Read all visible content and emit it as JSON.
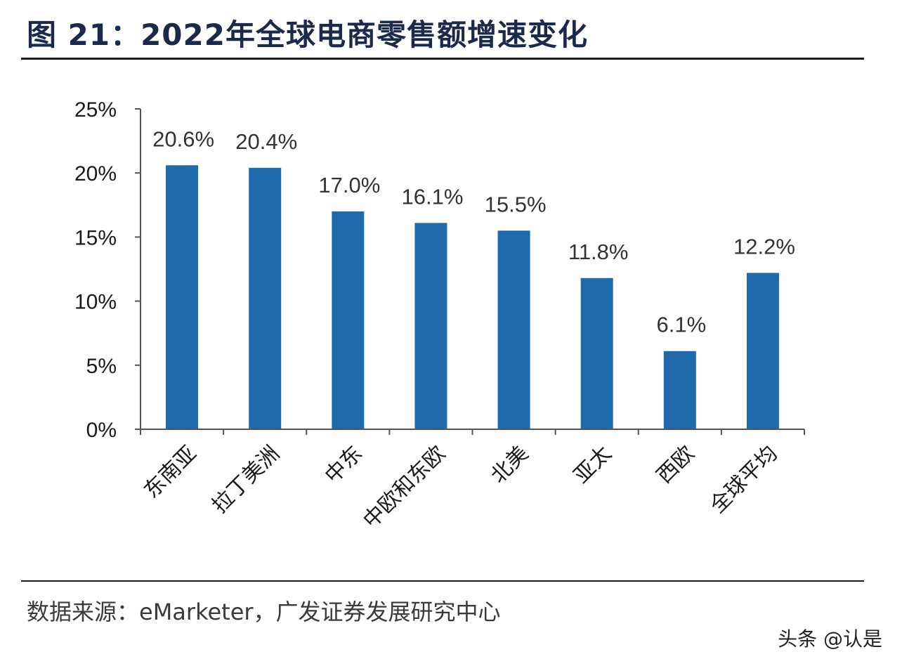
{
  "header": {
    "title": "图 21：2022年全球电商零售额增速变化"
  },
  "chart_data": {
    "type": "bar",
    "categories": [
      "东南亚",
      "拉丁美洲",
      "中东",
      "中欧和东欧",
      "北美",
      "亚太",
      "西欧",
      "全球平均"
    ],
    "values": [
      20.6,
      20.4,
      17.0,
      16.1,
      15.5,
      11.8,
      6.1,
      12.2
    ],
    "data_labels": [
      "20.6%",
      "20.4%",
      "17.0%",
      "16.1%",
      "15.5%",
      "11.8%",
      "6.1%",
      "12.2%"
    ],
    "yticks": [
      0,
      5,
      10,
      15,
      20,
      25
    ],
    "ytick_labels": [
      "0%",
      "5%",
      "10%",
      "15%",
      "20%",
      "25%"
    ],
    "ylim": [
      0,
      25
    ],
    "bar_color": "#1f6aad",
    "grid": false,
    "legend": "none"
  },
  "footer": {
    "source": "数据来源：eMarketer，广发证券发展研究中心",
    "watermark": "头条 @认是"
  }
}
